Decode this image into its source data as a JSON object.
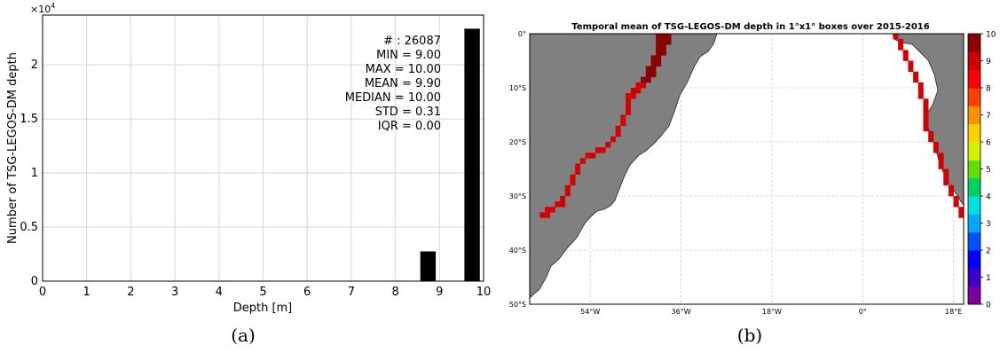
{
  "captions": {
    "a": "(a)",
    "b": "(b)"
  },
  "chart_data": [
    {
      "type": "bar",
      "title": "",
      "xlabel": "Depth [m]",
      "ylabel": "Number of TSG-LEGOS-DM depth",
      "y_exponent_label": "×10",
      "y_exponent_power": "4",
      "xlim": [
        0,
        10
      ],
      "ylim": [
        0,
        24600
      ],
      "xticks": [
        0,
        1,
        2,
        3,
        4,
        5,
        6,
        7,
        8,
        9,
        10
      ],
      "yticks": [
        0,
        5000,
        10000,
        15000,
        20000
      ],
      "ytick_labels": [
        "0",
        "0.5",
        "1",
        "1.5",
        "2"
      ],
      "grid": true,
      "bar_width": 0.35,
      "bars": [
        {
          "x": 8.74,
          "value": 2750
        },
        {
          "x": 9.74,
          "value": 23340
        }
      ],
      "bar_color": "#000000",
      "stats_lines": [
        "# : 26087",
        "MIN = 9.00",
        "MAX =  10.00",
        "MEAN = 9.90",
        "MEDIAN = 10.00",
        "STD = 0.31",
        "IQR = 0.00"
      ]
    },
    {
      "type": "heatmap",
      "title": "Temporal mean of TSG-LEGOS-DM depth in 1°x1° boxes over 2015-2016",
      "lon_range": [
        -66,
        20
      ],
      "lat_range": [
        -50,
        0
      ],
      "xtick_values": [
        -54,
        -36,
        -18,
        0,
        18
      ],
      "xtick_labels": [
        "54°W",
        "36°W",
        "18°W",
        "0°",
        "18°E"
      ],
      "ytick_values": [
        0,
        -10,
        -20,
        -30,
        -40,
        -50
      ],
      "ytick_labels": [
        "0°",
        "10°S",
        "20°S",
        "30°S",
        "40°S",
        "50°S"
      ],
      "grid": true,
      "land_color": "#808080",
      "colorbar": {
        "range": [
          0,
          10
        ],
        "ticks": [
          "0",
          "1",
          "2",
          "3",
          "4",
          "5",
          "6",
          "7",
          "8",
          "9",
          "10"
        ],
        "colors": [
          "#7b00a0",
          "#3a00c8",
          "#0000ff",
          "#0050ff",
          "#00a8ff",
          "#00e0e0",
          "#00d060",
          "#60e000",
          "#d8f000",
          "#ffd000",
          "#ff9000",
          "#ff4000",
          "#ff0000",
          "#d00000",
          "#900000"
        ]
      },
      "cells_value_10": [
        [
          -41,
          0
        ],
        [
          -40,
          0
        ],
        [
          -39,
          0
        ],
        [
          -41,
          -1
        ],
        [
          -40,
          -1
        ],
        [
          -39,
          -1
        ],
        [
          -41,
          -2
        ],
        [
          -40,
          -2
        ],
        [
          -41,
          -3
        ],
        [
          -40,
          -3
        ],
        [
          -42,
          -4
        ],
        [
          -41,
          -4
        ],
        [
          -42,
          -5
        ],
        [
          -41,
          -5
        ],
        [
          -42,
          -6
        ],
        [
          -43,
          -6
        ],
        [
          -43,
          -7
        ],
        [
          -42,
          -7
        ],
        [
          -44,
          -8
        ],
        [
          -43,
          -8
        ]
      ],
      "cells_value_9": [
        [
          -44,
          -9
        ],
        [
          -45,
          -9
        ],
        [
          -45,
          -10
        ],
        [
          -46,
          -10
        ],
        [
          -46,
          -11
        ],
        [
          -47,
          -11
        ],
        [
          -47,
          -12
        ],
        [
          -47,
          -13
        ],
        [
          -47,
          -14
        ],
        [
          -48,
          -15
        ],
        [
          -48,
          -16
        ],
        [
          -49,
          -17
        ],
        [
          -49,
          -18
        ],
        [
          -50,
          -19
        ],
        [
          -51,
          -20
        ],
        [
          -52,
          -21
        ],
        [
          -53,
          -21
        ],
        [
          -54,
          -22
        ],
        [
          -55,
          -22
        ],
        [
          -56,
          -23
        ],
        [
          -57,
          -24
        ],
        [
          -57,
          -25
        ],
        [
          -58,
          -26
        ],
        [
          -58,
          -27
        ],
        [
          -59,
          -28
        ],
        [
          -59,
          -29
        ],
        [
          -60,
          -30
        ],
        [
          -60,
          -31
        ],
        [
          -61,
          -31
        ],
        [
          -62,
          -32
        ],
        [
          -63,
          -32
        ],
        [
          -63,
          -33
        ],
        [
          -64,
          -33
        ],
        [
          6,
          0
        ],
        [
          7,
          -1
        ],
        [
          7,
          -2
        ],
        [
          8,
          -3
        ],
        [
          8,
          -4
        ],
        [
          9,
          -5
        ],
        [
          9,
          -6
        ],
        [
          10,
          -7
        ],
        [
          10,
          -8
        ],
        [
          11,
          -9
        ],
        [
          11,
          -10
        ],
        [
          11,
          -11
        ],
        [
          12,
          -12
        ],
        [
          12,
          -13
        ],
        [
          12,
          -14
        ],
        [
          12,
          -15
        ],
        [
          12,
          -16
        ],
        [
          12,
          -17
        ],
        [
          13,
          -18
        ],
        [
          13,
          -19
        ],
        [
          14,
          -20
        ],
        [
          14,
          -21
        ],
        [
          15,
          -22
        ],
        [
          15,
          -23
        ],
        [
          15,
          -24
        ],
        [
          16,
          -25
        ],
        [
          16,
          -26
        ],
        [
          16,
          -27
        ],
        [
          17,
          -28
        ],
        [
          17,
          -29
        ],
        [
          18,
          -30
        ],
        [
          18,
          -31
        ],
        [
          19,
          -32
        ],
        [
          19,
          -33
        ]
      ]
    }
  ]
}
